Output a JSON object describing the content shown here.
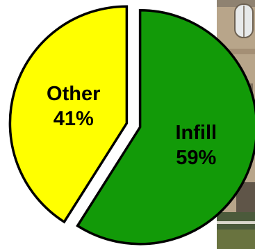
{
  "chart_data": {
    "type": "pie",
    "title": "",
    "slices": [
      {
        "label": "Infill",
        "value": 59,
        "value_label": "59%",
        "color": "#129A08"
      },
      {
        "label": "Other",
        "value": 41,
        "value_label": "41%",
        "color": "#FFFF00"
      }
    ],
    "exploded": true,
    "legend": "none"
  },
  "background": {
    "description_icon": "building-photo"
  }
}
